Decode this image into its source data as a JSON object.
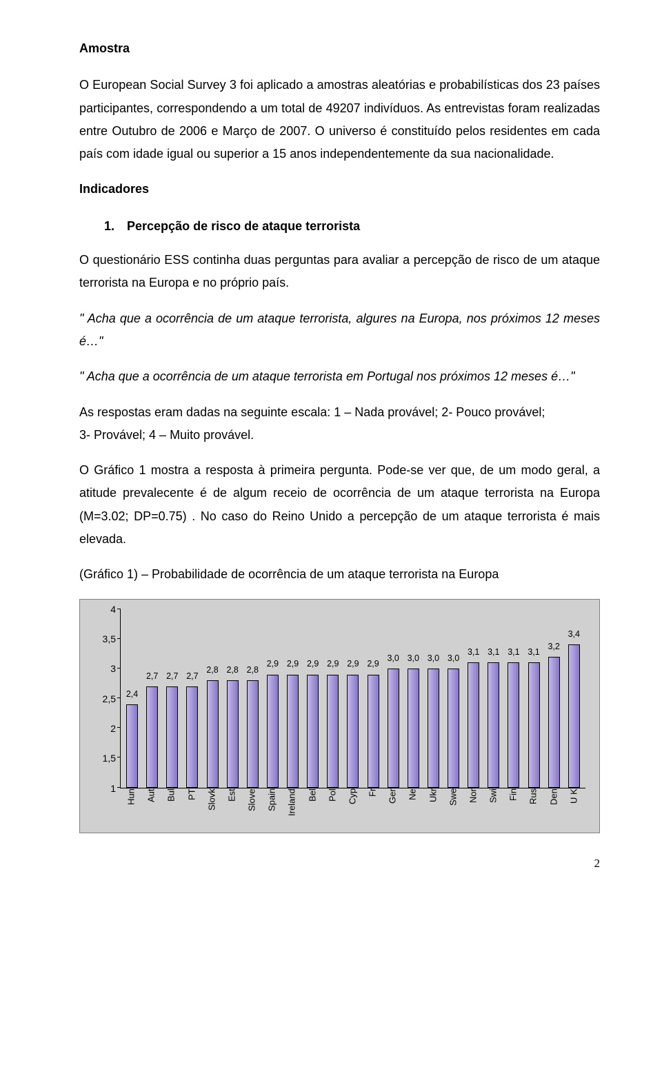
{
  "h_amostra": "Amostra",
  "p1": "O European Social Survey 3 foi aplicado a amostras aleatórias e probabilísticas dos 23 países participantes, correspondendo a um total de 49207 indivíduos. As entrevistas foram realizadas entre Outubro de 2006 e Março de 2007. O universo é constituído pelos residentes em cada país com idade igual ou superior a 15 anos independentemente da sua nacionalidade.",
  "h_indic": "Indicadores",
  "ind1_num": "1.",
  "ind1_txt": "Percepção de risco de ataque terrorista",
  "p2": "O questionário ESS continha duas perguntas para avaliar a percepção de risco de um ataque terrorista na Europa e no próprio país.",
  "q1": "\" Acha que a ocorrência de um ataque terrorista, algures na Europa, nos próximos 12 meses é…\"",
  "q2": "\" Acha que a ocorrência de um ataque terrorista em Portugal nos próximos 12 meses é…\"",
  "p3a": "As respostas eram dadas na seguinte escala: 1 – Nada provável; 2- Pouco provável;",
  "p3b": "3- Provável; 4 – Muito provável.",
  "p4": "O Gráfico 1 mostra a resposta à primeira pergunta. Pode-se ver que, de um modo geral, a atitude prevalecente é de algum receio de ocorrência de um ataque terrorista na Europa (M=3.02; DP=0.75) . No caso do Reino Unido a percepção de um ataque terrorista é mais elevada.",
  "chart_caption": "(Gráfico 1) – Probabilidade de ocorrência de um ataque terrorista na Europa",
  "chart": {
    "type": "bar",
    "ymin": 1,
    "ymax": 4,
    "ystep": 0.5,
    "y_ticks": [
      "1",
      "1,5",
      "2",
      "2,5",
      "3",
      "3,5",
      "4"
    ],
    "bar_fill_light": "#c4b8e8",
    "bar_fill_dark": "#8876c8",
    "bar_border": "#000000",
    "background": "#d0d0d0",
    "frame_border": "#808080",
    "axis_color": "#000000",
    "label_fontsize": 13,
    "value_fontsize": 12.5,
    "categories": [
      "Hun",
      "Aut",
      "Bul",
      "PT",
      "Slovk",
      "Est",
      "Slove",
      "Spain",
      "Ireland",
      "Bel",
      "Pol",
      "Cyp",
      "Fr",
      "Ger",
      "Ne",
      "Ukr",
      "Swe",
      "Nor",
      "Swi",
      "Fin",
      "Rus",
      "Den",
      "U K"
    ],
    "values_display": [
      "2,4",
      "2,7",
      "2,7",
      "2,7",
      "2,8",
      "2,8",
      "2,8",
      "2,9",
      "2,9",
      "2,9",
      "2,9",
      "2,9",
      "2,9",
      "3,0",
      "3,0",
      "3,0",
      "3,0",
      "3,1",
      "3,1",
      "3,1",
      "3,1",
      "3,2",
      "3,4"
    ],
    "values": [
      2.4,
      2.7,
      2.7,
      2.7,
      2.8,
      2.8,
      2.8,
      2.9,
      2.9,
      2.9,
      2.9,
      2.9,
      2.9,
      3.0,
      3.0,
      3.0,
      3.0,
      3.1,
      3.1,
      3.1,
      3.1,
      3.2,
      3.4
    ]
  },
  "page_number": "2"
}
